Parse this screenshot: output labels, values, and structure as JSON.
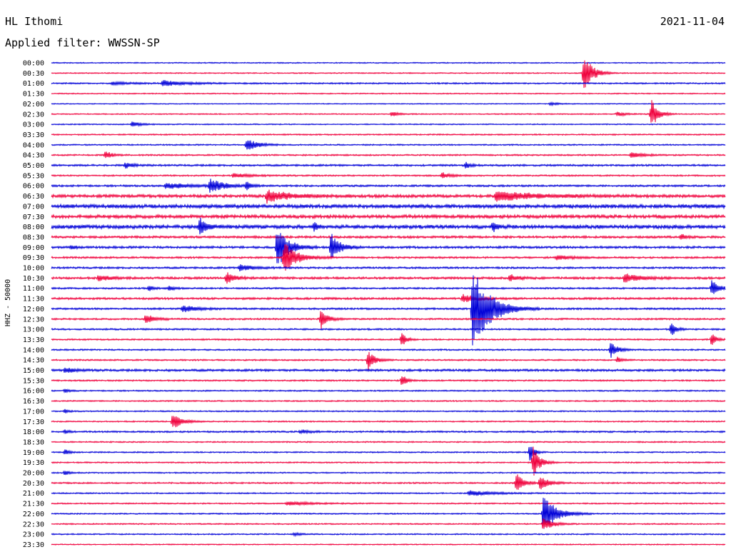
{
  "header": {
    "station": "HL Ithomi",
    "date": "2021-11-04",
    "filter": "Applied filter: WWSSN-SP"
  },
  "chart_data": {
    "type": "line",
    "title": "HL Ithomi",
    "ylabel": "HHZ - 50000",
    "colors": {
      "blue": "#0000d8",
      "red": "#f0003c"
    },
    "rows": [
      {
        "label": "00:00",
        "color": "blue",
        "noise": 0.6,
        "events": []
      },
      {
        "label": "00:30",
        "color": "red",
        "noise": 0.6,
        "events": [
          {
            "t": 0.79,
            "amp": 28,
            "dur": 0.02
          }
        ]
      },
      {
        "label": "01:00",
        "color": "blue",
        "noise": 0.8,
        "events": [
          {
            "t": 0.09,
            "amp": 2,
            "dur": 0.04
          },
          {
            "t": 0.165,
            "amp": 4,
            "dur": 0.05
          }
        ]
      },
      {
        "label": "01:30",
        "color": "red",
        "noise": 0.6,
        "events": []
      },
      {
        "label": "02:00",
        "color": "blue",
        "noise": 0.5,
        "events": [
          {
            "t": 0.74,
            "amp": 2,
            "dur": 0.02
          }
        ]
      },
      {
        "label": "02:30",
        "color": "red",
        "noise": 0.6,
        "events": [
          {
            "t": 0.505,
            "amp": 4,
            "dur": 0.015
          },
          {
            "t": 0.84,
            "amp": 3,
            "dur": 0.02
          },
          {
            "t": 0.89,
            "amp": 22,
            "dur": 0.015
          }
        ]
      },
      {
        "label": "03:00",
        "color": "blue",
        "noise": 0.6,
        "events": [
          {
            "t": 0.12,
            "amp": 4,
            "dur": 0.02
          }
        ]
      },
      {
        "label": "03:30",
        "color": "red",
        "noise": 0.7,
        "events": []
      },
      {
        "label": "04:00",
        "color": "blue",
        "noise": 0.7,
        "events": [
          {
            "t": 0.29,
            "amp": 9,
            "dur": 0.025
          }
        ]
      },
      {
        "label": "04:30",
        "color": "red",
        "noise": 0.8,
        "events": [
          {
            "t": 0.08,
            "amp": 6,
            "dur": 0.015
          },
          {
            "t": 0.86,
            "amp": 4,
            "dur": 0.03
          }
        ]
      },
      {
        "label": "05:00",
        "color": "blue",
        "noise": 1.0,
        "events": [
          {
            "t": 0.11,
            "amp": 5,
            "dur": 0.015
          },
          {
            "t": 0.615,
            "amp": 5,
            "dur": 0.01
          }
        ]
      },
      {
        "label": "05:30",
        "color": "red",
        "noise": 0.8,
        "events": [
          {
            "t": 0.27,
            "amp": 3,
            "dur": 0.04
          },
          {
            "t": 0.58,
            "amp": 4,
            "dur": 0.02
          }
        ]
      },
      {
        "label": "06:00",
        "color": "blue",
        "noise": 1.0,
        "events": [
          {
            "t": 0.17,
            "amp": 4,
            "dur": 0.06
          },
          {
            "t": 0.235,
            "amp": 10,
            "dur": 0.03
          },
          {
            "t": 0.29,
            "amp": 6,
            "dur": 0.01
          }
        ]
      },
      {
        "label": "06:30",
        "color": "red",
        "noise": 1.6,
        "events": [
          {
            "t": 0.32,
            "amp": 9,
            "dur": 0.05
          },
          {
            "t": 0.66,
            "amp": 7,
            "dur": 0.09
          }
        ]
      },
      {
        "label": "07:00",
        "color": "blue",
        "noise": 2.0,
        "events": []
      },
      {
        "label": "07:30",
        "color": "red",
        "noise": 1.8,
        "events": []
      },
      {
        "label": "08:00",
        "color": "blue",
        "noise": 2.0,
        "events": [
          {
            "t": 0.22,
            "amp": 12,
            "dur": 0.015
          },
          {
            "t": 0.39,
            "amp": 6,
            "dur": 0.01
          },
          {
            "t": 0.655,
            "amp": 8,
            "dur": 0.01
          }
        ]
      },
      {
        "label": "08:30",
        "color": "red",
        "noise": 1.2,
        "events": [
          {
            "t": 0.935,
            "amp": 4,
            "dur": 0.01
          }
        ]
      },
      {
        "label": "09:00",
        "color": "blue",
        "noise": 1.2,
        "events": [
          {
            "t": 0.03,
            "amp": 3,
            "dur": 0.01
          },
          {
            "t": 0.335,
            "amp": 32,
            "dur": 0.025
          },
          {
            "t": 0.415,
            "amp": 20,
            "dur": 0.02
          }
        ]
      },
      {
        "label": "09:30",
        "color": "red",
        "noise": 1.0,
        "events": [
          {
            "t": 0.345,
            "amp": 22,
            "dur": 0.03
          },
          {
            "t": 0.75,
            "amp": 4,
            "dur": 0.03
          }
        ]
      },
      {
        "label": "10:00",
        "color": "blue",
        "noise": 1.0,
        "events": [
          {
            "t": 0.28,
            "amp": 5,
            "dur": 0.03
          }
        ]
      },
      {
        "label": "10:30",
        "color": "red",
        "noise": 1.2,
        "events": [
          {
            "t": 0.07,
            "amp": 4,
            "dur": 0.03
          },
          {
            "t": 0.26,
            "amp": 8,
            "dur": 0.02
          },
          {
            "t": 0.68,
            "amp": 5,
            "dur": 0.02
          },
          {
            "t": 0.85,
            "amp": 6,
            "dur": 0.04
          }
        ]
      },
      {
        "label": "11:00",
        "color": "blue",
        "noise": 0.9,
        "events": [
          {
            "t": 0.145,
            "amp": 4,
            "dur": 0.01
          },
          {
            "t": 0.175,
            "amp": 4,
            "dur": 0.01
          },
          {
            "t": 0.98,
            "amp": 12,
            "dur": 0.015
          }
        ]
      },
      {
        "label": "11:30",
        "color": "red",
        "noise": 1.1,
        "events": [
          {
            "t": 0.61,
            "amp": 6,
            "dur": 0.03
          }
        ]
      },
      {
        "label": "12:00",
        "color": "blue",
        "noise": 1.0,
        "events": [
          {
            "t": 0.195,
            "amp": 5,
            "dur": 0.03
          },
          {
            "t": 0.625,
            "amp": 60,
            "dur": 0.04
          }
        ]
      },
      {
        "label": "12:30",
        "color": "red",
        "noise": 0.9,
        "events": [
          {
            "t": 0.14,
            "amp": 7,
            "dur": 0.02
          },
          {
            "t": 0.4,
            "amp": 14,
            "dur": 0.015
          }
        ]
      },
      {
        "label": "13:00",
        "color": "blue",
        "noise": 0.9,
        "events": [
          {
            "t": 0.92,
            "amp": 12,
            "dur": 0.01
          }
        ]
      },
      {
        "label": "13:30",
        "color": "red",
        "noise": 0.8,
        "events": [
          {
            "t": 0.52,
            "amp": 10,
            "dur": 0.01
          },
          {
            "t": 0.98,
            "amp": 10,
            "dur": 0.01
          }
        ]
      },
      {
        "label": "14:00",
        "color": "blue",
        "noise": 0.8,
        "events": [
          {
            "t": 0.83,
            "amp": 12,
            "dur": 0.015
          }
        ]
      },
      {
        "label": "14:30",
        "color": "red",
        "noise": 0.8,
        "events": [
          {
            "t": 0.47,
            "amp": 14,
            "dur": 0.015
          },
          {
            "t": 0.84,
            "amp": 4,
            "dur": 0.01
          }
        ]
      },
      {
        "label": "15:00",
        "color": "blue",
        "noise": 1.2,
        "events": [
          {
            "t": 0.02,
            "amp": 4,
            "dur": 0.02
          }
        ]
      },
      {
        "label": "15:30",
        "color": "red",
        "noise": 0.8,
        "events": [
          {
            "t": 0.52,
            "amp": 10,
            "dur": 0.01
          }
        ]
      },
      {
        "label": "16:00",
        "color": "blue",
        "noise": 0.7,
        "events": [
          {
            "t": 0.02,
            "amp": 3,
            "dur": 0.01
          }
        ]
      },
      {
        "label": "16:30",
        "color": "red",
        "noise": 0.7,
        "events": []
      },
      {
        "label": "17:00",
        "color": "blue",
        "noise": 0.7,
        "events": [
          {
            "t": 0.02,
            "amp": 3,
            "dur": 0.01
          }
        ]
      },
      {
        "label": "17:30",
        "color": "red",
        "noise": 0.7,
        "events": [
          {
            "t": 0.18,
            "amp": 12,
            "dur": 0.02
          }
        ]
      },
      {
        "label": "18:00",
        "color": "blue",
        "noise": 0.9,
        "events": [
          {
            "t": 0.02,
            "amp": 3,
            "dur": 0.01
          },
          {
            "t": 0.37,
            "amp": 3,
            "dur": 0.02
          }
        ]
      },
      {
        "label": "18:30",
        "color": "red",
        "noise": 0.7,
        "events": []
      },
      {
        "label": "19:00",
        "color": "blue",
        "noise": 0.7,
        "events": [
          {
            "t": 0.02,
            "amp": 4,
            "dur": 0.01
          },
          {
            "t": 0.71,
            "amp": 14,
            "dur": 0.01
          }
        ]
      },
      {
        "label": "19:30",
        "color": "red",
        "noise": 0.7,
        "events": [
          {
            "t": 0.715,
            "amp": 22,
            "dur": 0.015
          }
        ]
      },
      {
        "label": "20:00",
        "color": "blue",
        "noise": 0.7,
        "events": [
          {
            "t": 0.02,
            "amp": 4,
            "dur": 0.01
          }
        ]
      },
      {
        "label": "20:30",
        "color": "red",
        "noise": 0.8,
        "events": [
          {
            "t": 0.69,
            "amp": 16,
            "dur": 0.015
          },
          {
            "t": 0.725,
            "amp": 10,
            "dur": 0.02
          }
        ]
      },
      {
        "label": "21:00",
        "color": "blue",
        "noise": 0.7,
        "events": [
          {
            "t": 0.62,
            "amp": 4,
            "dur": 0.05
          }
        ]
      },
      {
        "label": "21:30",
        "color": "red",
        "noise": 0.7,
        "events": [
          {
            "t": 0.35,
            "amp": 3,
            "dur": 0.05
          }
        ]
      },
      {
        "label": "22:00",
        "color": "blue",
        "noise": 0.7,
        "events": [
          {
            "t": 0.73,
            "amp": 26,
            "dur": 0.03
          }
        ]
      },
      {
        "label": "22:30",
        "color": "red",
        "noise": 0.7,
        "events": [
          {
            "t": 0.73,
            "amp": 10,
            "dur": 0.02
          }
        ]
      },
      {
        "label": "23:00",
        "color": "blue",
        "noise": 0.7,
        "events": [
          {
            "t": 0.36,
            "amp": 2,
            "dur": 0.02
          }
        ]
      },
      {
        "label": "23:30",
        "color": "red",
        "noise": 0.6,
        "events": []
      }
    ]
  }
}
